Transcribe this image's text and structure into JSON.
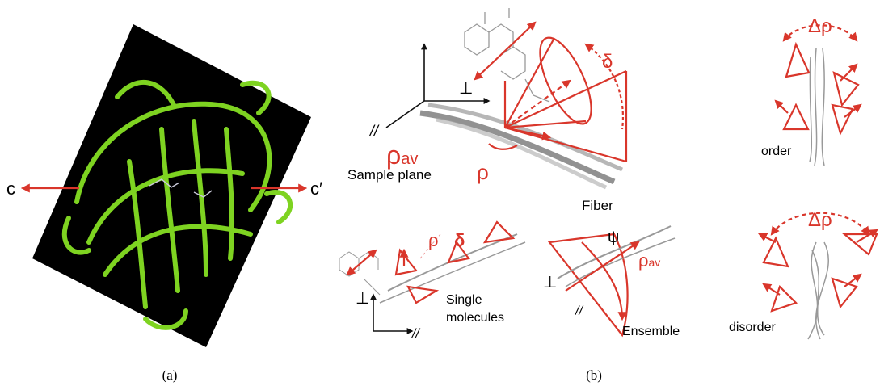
{
  "panel_a": {
    "label": "(a)",
    "left_axis": "c",
    "right_axis": "c′"
  },
  "panel_b": {
    "label": "(b)",
    "main": {
      "cone_angle": "δ",
      "average_angle": {
        "symbol": "ρ",
        "subscript": "av"
      },
      "angle": "ρ",
      "sample_plane": "Sample plane",
      "fiber": "Fiber",
      "perpendicular": "⊥",
      "parallel": "//"
    },
    "order": {
      "spread": "Δρ",
      "label": "order"
    },
    "disorder": {
      "spread": "Δρ",
      "label": "disorder"
    },
    "single": {
      "angle": "ρ",
      "cone_angle": "δ",
      "label_line1": "Single",
      "label_line2": "molecules",
      "perpendicular": "⊥",
      "parallel": "//"
    },
    "ensemble": {
      "tilt": "ψ",
      "average_angle": {
        "symbol": "ρ",
        "subscript": "av"
      },
      "perpendicular": "⊥",
      "parallel": "//",
      "label": "Ensemble"
    }
  }
}
